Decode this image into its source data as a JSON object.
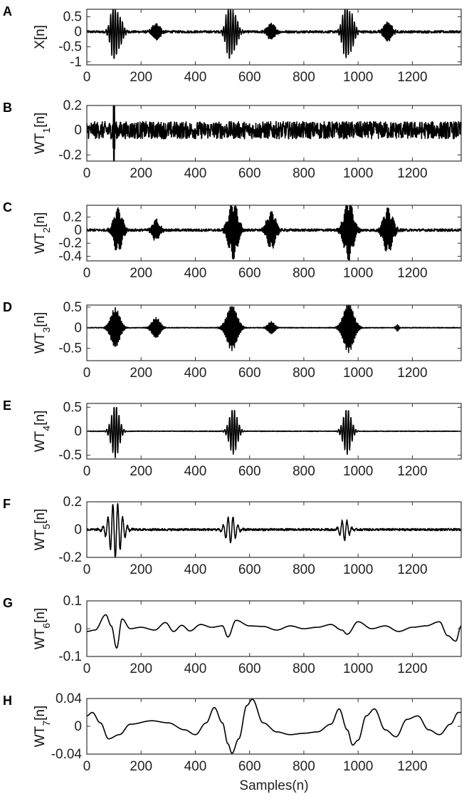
{
  "chart_data": [
    {
      "panel": "A",
      "type": "line",
      "ylabel": "X[n]",
      "ylabel_main": "X",
      "ylabel_sub": "",
      "ylabel_suffix": "[n]",
      "xlim": [
        0,
        1380
      ],
      "ylim": [
        -1.1,
        0.75
      ],
      "xticks": [
        0,
        200,
        400,
        600,
        800,
        1000,
        1200
      ],
      "xtick_labels": [
        "0",
        "200",
        "400",
        "600",
        "800",
        "1000",
        "1200"
      ],
      "yticks": [
        0.5,
        0,
        -0.5,
        -1
      ],
      "ytick_labels": [
        "0.5",
        "0",
        "-0.5",
        "-1"
      ],
      "noise": 0.04,
      "events": [
        {
          "n": 100,
          "amp": -1.0,
          "width": 12,
          "freq": 0.12
        },
        {
          "n": 115,
          "amp": 0.65,
          "width": 14,
          "freq": 0.12
        },
        {
          "n": 255,
          "amp": 0.25,
          "width": 14,
          "freq": 0.25
        },
        {
          "n": 525,
          "amp": -0.95,
          "width": 12,
          "freq": 0.12
        },
        {
          "n": 540,
          "amp": 0.7,
          "width": 14,
          "freq": 0.12
        },
        {
          "n": 680,
          "amp": 0.25,
          "width": 14,
          "freq": 0.25
        },
        {
          "n": 955,
          "amp": -0.95,
          "width": 12,
          "freq": 0.12
        },
        {
          "n": 970,
          "amp": 0.7,
          "width": 14,
          "freq": 0.12
        },
        {
          "n": 1110,
          "amp": 0.3,
          "width": 14,
          "freq": 0.25
        }
      ]
    },
    {
      "panel": "B",
      "type": "line",
      "ylabel": "WT1[n]",
      "ylabel_main": "WT",
      "ylabel_sub": "1",
      "ylabel_suffix": "[n]",
      "xlim": [
        0,
        1380
      ],
      "ylim": [
        -0.25,
        0.2
      ],
      "xticks": [
        0,
        200,
        400,
        600,
        800,
        1000,
        1200
      ],
      "xtick_labels": [
        "0",
        "200",
        "400",
        "600",
        "800",
        "1000",
        "1200"
      ],
      "yticks": [
        0.2,
        0,
        -0.2
      ],
      "ytick_labels": [
        "0.2",
        "0",
        "-0.2"
      ],
      "noise": 0.07,
      "events": [
        {
          "n": 98,
          "amp": 0.2,
          "width": 2,
          "freq": 0.45
        },
        {
          "n": 101,
          "amp": -0.24,
          "width": 2,
          "freq": 0.45
        }
      ]
    },
    {
      "panel": "C",
      "type": "line",
      "ylabel": "WT2[n]",
      "ylabel_main": "WT",
      "ylabel_sub": "2",
      "ylabel_suffix": "[n]",
      "xlim": [
        0,
        1380
      ],
      "ylim": [
        -0.47,
        0.38
      ],
      "xticks": [
        0,
        200,
        400,
        600,
        800,
        1000,
        1200
      ],
      "xtick_labels": [
        "0",
        "200",
        "400",
        "600",
        "800",
        "1000",
        "1200"
      ],
      "yticks": [
        0.2,
        0,
        -0.2,
        -0.4
      ],
      "ytick_labels": [
        "0.2",
        "0",
        "-0.2",
        "-0.4"
      ],
      "noise": 0.02,
      "events": [
        {
          "n": 115,
          "amp": 0.35,
          "width": 15,
          "freq": 0.35
        },
        {
          "n": 255,
          "amp": 0.17,
          "width": 12,
          "freq": 0.35
        },
        {
          "n": 540,
          "amp": -0.45,
          "width": 16,
          "freq": 0.35
        },
        {
          "n": 680,
          "amp": 0.3,
          "width": 15,
          "freq": 0.35
        },
        {
          "n": 965,
          "amp": -0.47,
          "width": 16,
          "freq": 0.35
        },
        {
          "n": 1110,
          "amp": 0.35,
          "width": 16,
          "freq": 0.35
        }
      ]
    },
    {
      "panel": "D",
      "type": "line",
      "ylabel": "WT3[n]",
      "ylabel_main": "WT",
      "ylabel_sub": "3",
      "ylabel_suffix": "[n]",
      "xlim": [
        0,
        1380
      ],
      "ylim": [
        -0.8,
        0.55
      ],
      "xticks": [
        0,
        200,
        400,
        600,
        800,
        1000,
        1200
      ],
      "xtick_labels": [
        "0",
        "200",
        "400",
        "600",
        "800",
        "1000",
        "1200"
      ],
      "yticks": [
        0.5,
        0,
        -0.5
      ],
      "ytick_labels": [
        "0.5",
        "0",
        "-0.5"
      ],
      "noise": 0.008,
      "events": [
        {
          "n": 105,
          "amp": 0.48,
          "width": 16,
          "freq": 0.22
        },
        {
          "n": 255,
          "amp": 0.25,
          "width": 14,
          "freq": 0.22
        },
        {
          "n": 535,
          "amp": -0.55,
          "width": 18,
          "freq": 0.22
        },
        {
          "n": 680,
          "amp": 0.15,
          "width": 12,
          "freq": 0.22
        },
        {
          "n": 965,
          "amp": -0.6,
          "width": 18,
          "freq": 0.22
        },
        {
          "n": 1145,
          "amp": 0.08,
          "width": 5,
          "freq": 0.22
        }
      ]
    },
    {
      "panel": "E",
      "type": "line",
      "ylabel": "WT4[n]",
      "ylabel_main": "WT",
      "ylabel_sub": "4",
      "ylabel_suffix": "[n]",
      "xlim": [
        0,
        1380
      ],
      "ylim": [
        -0.58,
        0.58
      ],
      "xticks": [
        0,
        200,
        400,
        600,
        800,
        1000,
        1200
      ],
      "xtick_labels": [
        "0",
        "200",
        "400",
        "600",
        "800",
        "1000",
        "1200"
      ],
      "yticks": [
        0.5,
        0,
        -0.5
      ],
      "ytick_labels": [
        "0.5",
        "0",
        "-0.5"
      ],
      "noise": 0.006,
      "events": [
        {
          "n": 105,
          "amp": -0.55,
          "width": 14,
          "freq": 0.11
        },
        {
          "n": 540,
          "amp": -0.48,
          "width": 14,
          "freq": 0.11
        },
        {
          "n": 960,
          "amp": -0.48,
          "width": 14,
          "freq": 0.11
        }
      ]
    },
    {
      "panel": "F",
      "type": "line",
      "ylabel": "WT5[n]",
      "ylabel_main": "WT",
      "ylabel_sub": "5",
      "ylabel_suffix": "[n]",
      "xlim": [
        0,
        1380
      ],
      "ylim": [
        -0.2,
        0.2
      ],
      "xticks": [
        0,
        200,
        400,
        600,
        800,
        1000,
        1200
      ],
      "xtick_labels": [
        "0",
        "200",
        "400",
        "600",
        "800",
        "1000",
        "1200"
      ],
      "yticks": [
        0.2,
        0,
        -0.2
      ],
      "ytick_labels": [
        "0.2",
        "0",
        "-0.2"
      ],
      "noise": 0.008,
      "events": [
        {
          "n": 105,
          "amp": -0.2,
          "width": 22,
          "freq": 0.055
        },
        {
          "n": 530,
          "amp": -0.1,
          "width": 18,
          "freq": 0.055
        },
        {
          "n": 950,
          "amp": -0.08,
          "width": 14,
          "freq": 0.055
        }
      ]
    },
    {
      "panel": "G",
      "type": "line",
      "ylabel": "WT6[n]",
      "ylabel_main": "WT",
      "ylabel_sub": "6",
      "ylabel_suffix": "[n]",
      "xlim": [
        0,
        1380
      ],
      "ylim": [
        -0.1,
        0.1
      ],
      "xticks": [
        0,
        200,
        400,
        600,
        800,
        1000,
        1200
      ],
      "xtick_labels": [
        "0",
        "200",
        "400",
        "600",
        "800",
        "1000",
        "1200"
      ],
      "yticks": [
        0.1,
        0,
        -0.1
      ],
      "ytick_labels": [
        "0.1",
        "0",
        "-0.1"
      ],
      "noise": 0.0,
      "x": [
        0,
        30,
        70,
        90,
        110,
        130,
        160,
        200,
        250,
        290,
        320,
        350,
        380,
        420,
        460,
        500,
        520,
        550,
        600,
        650,
        700,
        750,
        800,
        850,
        900,
        940,
        960,
        1000,
        1050,
        1100,
        1150,
        1200,
        1250,
        1300,
        1330,
        1360,
        1380
      ],
      "y": [
        -0.01,
        -0.005,
        0.05,
        0.01,
        -0.07,
        0.035,
        0.0,
        0.005,
        -0.005,
        0.022,
        -0.01,
        0.012,
        -0.008,
        0.015,
        0.005,
        0.01,
        -0.03,
        0.03,
        0.01,
        0.008,
        -0.005,
        0.01,
        0.0,
        0.005,
        0.015,
        -0.005,
        -0.02,
        0.025,
        0.0,
        0.01,
        -0.01,
        0.005,
        0.01,
        0.025,
        -0.025,
        -0.045,
        0.01
      ]
    },
    {
      "panel": "H",
      "type": "line",
      "ylabel": "WT7[n]",
      "ylabel_main": "WT",
      "ylabel_sub": "7",
      "ylabel_suffix": "[n]",
      "xlabel": "Samples(n)",
      "xlim": [
        0,
        1380
      ],
      "ylim": [
        -0.04,
        0.04
      ],
      "xticks": [
        0,
        200,
        400,
        600,
        800,
        1000,
        1200
      ],
      "xtick_labels": [
        "0",
        "200",
        "400",
        "600",
        "800",
        "1000",
        "1200"
      ],
      "yticks": [
        0.04,
        0,
        -0.04
      ],
      "ytick_labels": [
        "0.04",
        "0",
        "-0.04"
      ],
      "noise": 0.0,
      "x": [
        0,
        20,
        50,
        80,
        120,
        160,
        240,
        300,
        360,
        400,
        440,
        470,
        500,
        520,
        535,
        560,
        590,
        610,
        650,
        700,
        750,
        800,
        850,
        900,
        930,
        960,
        980,
        1000,
        1030,
        1060,
        1100,
        1140,
        1180,
        1220,
        1260,
        1300,
        1340,
        1370,
        1380
      ],
      "y": [
        0.015,
        0.02,
        0.005,
        -0.018,
        -0.012,
        0.003,
        0.008,
        0.005,
        -0.005,
        -0.012,
        0.005,
        0.027,
        0.005,
        -0.025,
        -0.039,
        -0.018,
        0.03,
        0.039,
        0.005,
        -0.008,
        -0.012,
        -0.01,
        -0.008,
        0.003,
        0.025,
        -0.005,
        -0.027,
        -0.02,
        0.015,
        0.025,
        -0.005,
        -0.015,
        0.01,
        0.015,
        -0.005,
        -0.012,
        0.003,
        0.02,
        0.02
      ]
    }
  ]
}
